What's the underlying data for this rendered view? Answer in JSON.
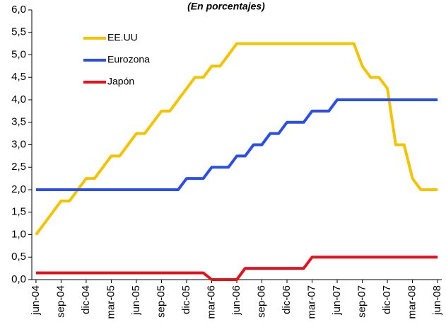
{
  "chart_data": {
    "type": "line",
    "subtitle": "(En porcentajes)",
    "categories": [
      "jun-04",
      null,
      null,
      "sep-04",
      null,
      null,
      "dic-04",
      null,
      null,
      "mar-05",
      null,
      null,
      "jun-05",
      null,
      null,
      "sep-05",
      null,
      null,
      "dic-05",
      null,
      null,
      "mar-06",
      null,
      null,
      "jun-06",
      null,
      null,
      "sep-06",
      null,
      null,
      "dic-06",
      null,
      null,
      "mar-07",
      null,
      null,
      "jun-07",
      null,
      null,
      "sep-07",
      null,
      null,
      "dic-07",
      null,
      null,
      "mar-08",
      null,
      null,
      "jun-08"
    ],
    "series": [
      {
        "name": "EE.UU",
        "color": "#f5c400",
        "values": [
          1.0,
          1.25,
          1.5,
          1.75,
          1.75,
          2.0,
          2.25,
          2.25,
          2.5,
          2.75,
          2.75,
          3.0,
          3.25,
          3.25,
          3.5,
          3.75,
          3.75,
          4.0,
          4.25,
          4.5,
          4.5,
          4.75,
          4.75,
          5.0,
          5.25,
          5.25,
          5.25,
          5.25,
          5.25,
          5.25,
          5.25,
          5.25,
          5.25,
          5.25,
          5.25,
          5.25,
          5.25,
          5.25,
          5.25,
          4.75,
          4.5,
          4.5,
          4.25,
          3.0,
          3.0,
          2.25,
          2.0,
          2.0,
          2.0
        ]
      },
      {
        "name": "Eurozona",
        "color": "#2a4fe8",
        "values": [
          2.0,
          2.0,
          2.0,
          2.0,
          2.0,
          2.0,
          2.0,
          2.0,
          2.0,
          2.0,
          2.0,
          2.0,
          2.0,
          2.0,
          2.0,
          2.0,
          2.0,
          2.0,
          2.25,
          2.25,
          2.25,
          2.5,
          2.5,
          2.5,
          2.75,
          2.75,
          3.0,
          3.0,
          3.25,
          3.25,
          3.5,
          3.5,
          3.5,
          3.75,
          3.75,
          3.75,
          4.0,
          4.0,
          4.0,
          4.0,
          4.0,
          4.0,
          4.0,
          4.0,
          4.0,
          4.0,
          4.0,
          4.0,
          4.0
        ]
      },
      {
        "name": "Japón",
        "color": "#e8101a",
        "values": [
          0.15,
          0.15,
          0.15,
          0.15,
          0.15,
          0.15,
          0.15,
          0.15,
          0.15,
          0.15,
          0.15,
          0.15,
          0.15,
          0.15,
          0.15,
          0.15,
          0.15,
          0.15,
          0.15,
          0.15,
          0.15,
          0,
          0,
          0,
          0,
          0.25,
          0.25,
          0.25,
          0.25,
          0.25,
          0.25,
          0.25,
          0.25,
          0.5,
          0.5,
          0.5,
          0.5,
          0.5,
          0.5,
          0.5,
          0.5,
          0.5,
          0.5,
          0.5,
          0.5,
          0.5,
          0.5,
          0.5,
          0.5
        ]
      }
    ],
    "ylim": [
      0,
      6
    ],
    "yticks": [
      {
        "value": 0,
        "label": "0,0"
      },
      {
        "value": 0.5,
        "label": "0,5"
      },
      {
        "value": 1,
        "label": "1,0"
      },
      {
        "value": 1.5,
        "label": "1,5"
      },
      {
        "value": 2,
        "label": "2,0"
      },
      {
        "value": 2.5,
        "label": "2,5"
      },
      {
        "value": 3,
        "label": "3,0"
      },
      {
        "value": 3.5,
        "label": "3,5"
      },
      {
        "value": 4,
        "label": "4,0"
      },
      {
        "value": 4.5,
        "label": "4,5"
      },
      {
        "value": 5,
        "label": "5,0"
      },
      {
        "value": 5.5,
        "label": "5,5"
      },
      {
        "value": 6,
        "label": "6,0"
      }
    ],
    "grid": false,
    "legend": "upper-left"
  }
}
